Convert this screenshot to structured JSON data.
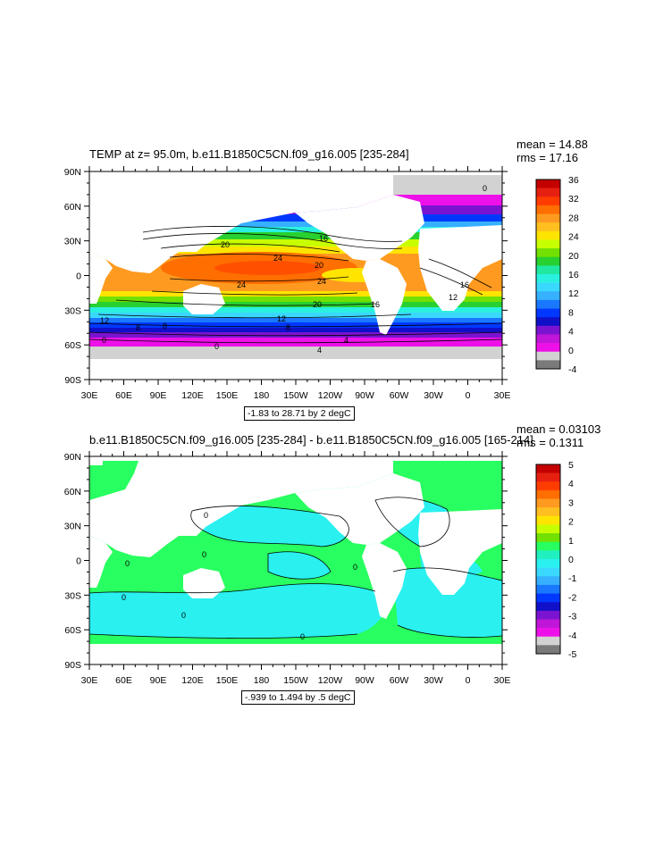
{
  "panels": [
    {
      "title": "TEMP at z=  95.0m, b.e11.B1850C5CN.f09_g16.005 [235-284]",
      "mean_text": "mean = 14.88",
      "rms_text": "rms = 17.16",
      "range_text": "-1.83 to 28.71 by 2 degC",
      "lat_labels": [
        "90N",
        "60N",
        "30N",
        "0",
        "30S",
        "60S",
        "90S"
      ],
      "lon_labels": [
        "30E",
        "60E",
        "90E",
        "120E",
        "150E",
        "180",
        "150W",
        "120W",
        "90W",
        "60W",
        "30W",
        "0",
        "30E"
      ],
      "colorbar_labels": [
        "36",
        "32",
        "28",
        "24",
        "20",
        "16",
        "12",
        "8",
        "4",
        "0",
        "-4"
      ],
      "colorbar_colors": [
        "#c40000",
        "#e62010",
        "#ff3c00",
        "#ff6e00",
        "#ff9a20",
        "#ffbf20",
        "#ffe400",
        "#c8ff00",
        "#72e000",
        "#28d030",
        "#20e8a0",
        "#2af0e0",
        "#3ad8ff",
        "#36b0ff",
        "#1a78ff",
        "#0038ff",
        "#1010c8",
        "#7a14d0",
        "#c016d8",
        "#ee10e8",
        "#d2d2d2",
        "#7a7a7a"
      ],
      "contour_labels": [
        "20",
        "24",
        "20",
        "16",
        "0",
        "24",
        "24",
        "20",
        "16",
        "12",
        "12",
        "8",
        "8",
        "4",
        "0",
        "0",
        "16",
        "12",
        "4",
        "8"
      ]
    },
    {
      "title": "b.e11.B1850C5CN.f09_g16.005 [235-284] - b.e11.B1850C5CN.f09_g16.005 [165-214]",
      "mean_text": "mean = 0.03103",
      "rms_text": "rms = 0.1311",
      "range_text": "-.939 to 1.494 by .5 degC",
      "lat_labels": [
        "90N",
        "60N",
        "30N",
        "0",
        "30S",
        "60S",
        "90S"
      ],
      "lon_labels": [
        "30E",
        "60E",
        "90E",
        "120E",
        "150E",
        "180",
        "150W",
        "120W",
        "90W",
        "60W",
        "30W",
        "0",
        "30E"
      ],
      "colorbar_labels": [
        "5",
        "4",
        "3",
        "2",
        "1",
        "0",
        "-1",
        "-2",
        "-3",
        "-4",
        "-5"
      ],
      "colorbar_colors": [
        "#c40000",
        "#e62010",
        "#ff3c00",
        "#ff6e00",
        "#ff9a20",
        "#ffbf20",
        "#ffe400",
        "#c8ff00",
        "#72e000",
        "#28ff60",
        "#20f0c0",
        "#2af0f0",
        "#3ad8ff",
        "#36b0ff",
        "#1a78ff",
        "#0038ff",
        "#1010c8",
        "#7a14d0",
        "#c016d8",
        "#ee10e8",
        "#d2d2d2",
        "#7a7a7a"
      ],
      "contour_labels": [
        "0",
        "0",
        "0",
        "0",
        "0",
        "0",
        "0"
      ]
    }
  ],
  "colors": {
    "land": "#ffffff",
    "sea_ice": "#d2d2d2",
    "frame": "#000000"
  }
}
